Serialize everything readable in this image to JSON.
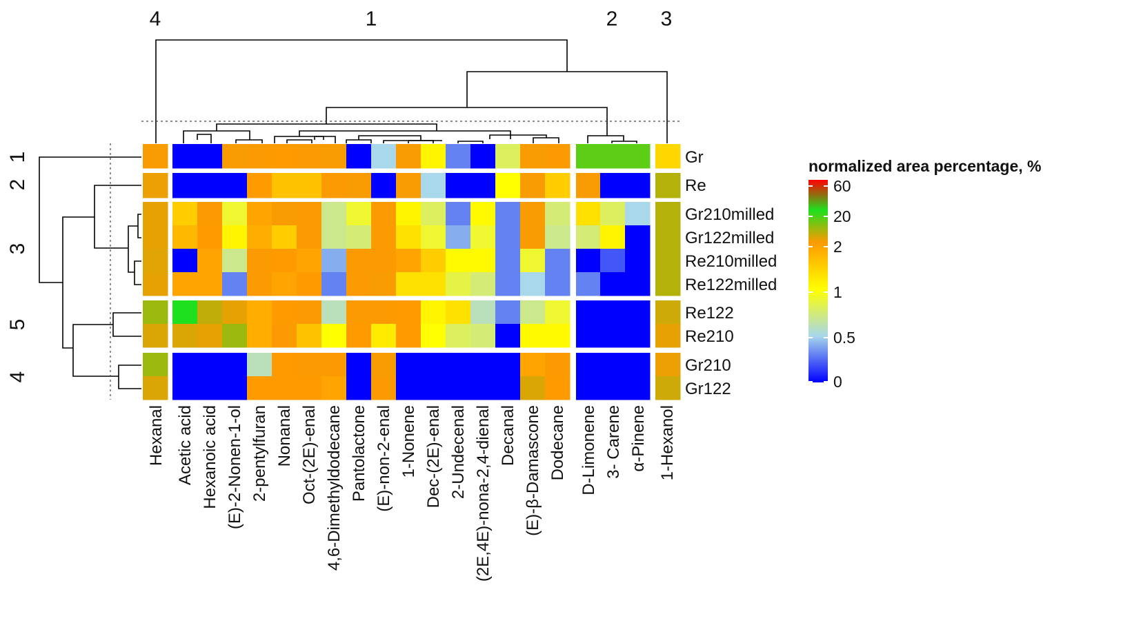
{
  "chart_data": {
    "type": "heatmap",
    "title": "",
    "legend": {
      "title": "normalized area percentage, %",
      "ticks": [
        "60",
        "20",
        "2",
        "1",
        "0.5",
        "0"
      ],
      "tick_values": [
        60,
        20,
        2,
        1,
        0.5,
        0
      ],
      "colormap": [
        "#ff0000",
        "#1fe01f",
        "#ff9a00",
        "#ffff00",
        "#a8d8ea",
        "#0000ff"
      ]
    },
    "column_cluster_labels": [
      "4",
      "1",
      "2",
      "3"
    ],
    "row_cluster_labels": [
      "1",
      "2",
      "3",
      "5",
      "4"
    ],
    "column_groups": [
      {
        "cluster": "4",
        "columns": [
          "Hexanal"
        ]
      },
      {
        "cluster": "1",
        "columns": [
          "Acetic acid",
          "Hexanoic acid",
          "(E)-2-Nonen-1-ol",
          "2-pentylfuran",
          "Nonanal",
          "Oct-(2E)-enal",
          "4,6-Dimethyldodecane",
          "Pantolactone",
          "(E)-non-2-enal",
          "1-Nonene",
          "Dec-(2E)-enal",
          "2-Undecenal",
          "(2E,4E)-nona-2,4-dienal",
          "Decanal",
          "(E)-β-Damascone",
          "Dodecane"
        ]
      },
      {
        "cluster": "2",
        "columns": [
          "D-Limonene",
          "3- Carene",
          "α-Pinene"
        ]
      },
      {
        "cluster": "3",
        "columns": [
          "1-Hexanol"
        ]
      }
    ],
    "row_groups": [
      {
        "cluster": "1",
        "rows": [
          "Gr"
        ]
      },
      {
        "cluster": "2",
        "rows": [
          "Re"
        ]
      },
      {
        "cluster": "3",
        "rows": [
          "Gr210milled",
          "Gr122milled",
          "Re210milled",
          "Re122milled"
        ]
      },
      {
        "cluster": "5",
        "rows": [
          "Re122",
          "Re210"
        ]
      },
      {
        "cluster": "4",
        "rows": [
          "Gr210",
          "Gr122"
        ]
      }
    ],
    "values": [
      [
        2.5,
        0,
        0,
        2.5,
        2.3,
        2.2,
        2.3,
        2.5,
        0,
        0.5,
        2.5,
        1.1,
        0.3,
        0,
        0.8,
        2.5,
        2.3,
        15,
        15,
        15,
        1.4
      ],
      [
        3.5,
        0,
        0,
        0,
        2.2,
        1.6,
        1.6,
        2.3,
        2.5,
        0,
        2.5,
        0.5,
        0,
        0,
        1.0,
        2.5,
        1.5,
        2.5,
        0,
        0,
        8
      ],
      [
        4,
        1.5,
        2.3,
        0.9,
        1.9,
        2.5,
        2.3,
        0.7,
        0.9,
        2.3,
        1.1,
        0.8,
        0.3,
        1.05,
        0.3,
        2.5,
        0.75,
        1.3,
        0.8,
        0.5,
        8
      ],
      [
        4,
        1.7,
        2.0,
        1.1,
        1.8,
        1.5,
        2.3,
        0.7,
        0.75,
        2.3,
        1.3,
        0.9,
        0.4,
        0.9,
        0.3,
        2.5,
        0.7,
        0.75,
        1.1,
        0,
        8
      ],
      [
        4.5,
        0,
        1.9,
        0.7,
        2.3,
        2.0,
        1.9,
        0.4,
        2.3,
        2.3,
        1.9,
        1.5,
        1.05,
        1.05,
        0.3,
        0.9,
        0.3,
        0,
        0.2,
        0,
        8
      ],
      [
        4,
        1.9,
        1.9,
        0.3,
        2.3,
        1.9,
        2.0,
        0.3,
        2.3,
        2.5,
        1.3,
        1.3,
        0.85,
        0.75,
        0.3,
        0.5,
        0.3,
        0.3,
        0,
        0,
        8
      ],
      [
        10,
        20,
        7,
        4,
        1.8,
        2.2,
        2.3,
        0.6,
        2.3,
        2.3,
        2.2,
        1.1,
        1.3,
        0.6,
        0.3,
        0.7,
        0.9,
        0,
        0,
        0,
        6
      ],
      [
        5,
        5,
        4,
        10,
        1.8,
        2.3,
        1.6,
        1.0,
        2.0,
        1.2,
        2.2,
        1.0,
        0.8,
        0.75,
        0,
        1.05,
        1.05,
        0,
        0,
        0,
        4
      ],
      [
        10,
        0,
        0,
        0,
        0.6,
        2.0,
        2.3,
        2.3,
        0,
        2.5,
        0,
        0,
        0,
        0,
        0,
        1.9,
        2.3,
        0,
        0,
        0,
        3.5
      ],
      [
        5,
        0,
        0,
        0,
        2.2,
        2.0,
        2.0,
        1.9,
        0,
        2.3,
        0,
        0,
        0,
        0,
        0,
        5,
        2.2,
        0,
        0,
        0,
        6
      ]
    ]
  }
}
